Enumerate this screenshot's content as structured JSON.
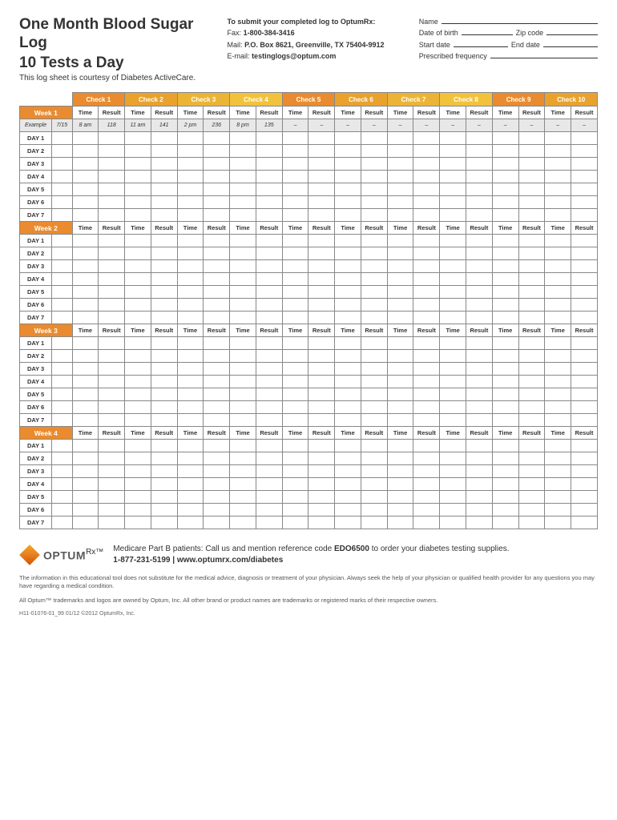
{
  "title1": "One Month Blood Sugar Log",
  "title2": "10 Tests a Day",
  "subtitle": "This log sheet is courtesy of Diabetes ActiveCare.",
  "submit": {
    "heading": "To submit your completed log to OptumRx:",
    "fax_lbl": "Fax:",
    "fax_val": "1-800-384-3416",
    "mail_lbl": "Mail:",
    "mail_val": "P.O. Box 8621, Greenville, TX 75404-9912",
    "email_lbl": "E-mail:",
    "email_val": "testinglogs@optum.com"
  },
  "fields": {
    "name": "Name",
    "dob": "Date of birth",
    "zip": "Zip code",
    "start": "Start date",
    "end": "End date",
    "freq": "Prescribed frequency"
  },
  "table": {
    "checks": [
      "Check 1",
      "Check 2",
      "Check 3",
      "Check 4",
      "Check 5",
      "Check 6",
      "Check 7",
      "Check 8",
      "Check 9",
      "Check 10"
    ],
    "check_colors": [
      "#e98b2e",
      "#e9a22e",
      "#ecb436",
      "#f2c23c",
      "#e98b2e",
      "#e9a22e",
      "#ecb436",
      "#f2c23c",
      "#e98b2e",
      "#e9a22e"
    ],
    "week_color": "#e98b2e",
    "tr_time": "Time",
    "tr_result": "Result",
    "weeks": [
      "Week 1",
      "Week 2",
      "Week 3",
      "Week 4"
    ],
    "days": [
      "DAY 1",
      "DAY 2",
      "DAY 3",
      "DAY 4",
      "DAY 5",
      "DAY 6",
      "DAY 7"
    ],
    "example_label": "Example",
    "example_date": "7/15",
    "example_cells": [
      "8 am",
      "118",
      "11 am",
      "141",
      "2 pm",
      "236",
      "8 pm",
      "135",
      "–",
      "–",
      "–",
      "–",
      "–",
      "–",
      "–",
      "–",
      "–",
      "–",
      "–",
      "–"
    ]
  },
  "footer": {
    "logo_text": "OPTUM",
    "logo_rx": "Rx™",
    "line1a": "Medicare Part B patients:  Call us and mention reference code ",
    "line1b": "EDO6500",
    "line1c": " to order your diabetes testing supplies.",
    "line2": "1-877-231-5199  |  www.optumrx.com/diabetes",
    "disc1": "The information in this educational tool does not substitute for the medical advice, diagnosis or treatment of your physician. Always seek the help of your physician or qualified health provider for any questions you may have regarding a medical condition.",
    "disc2": "All Optum™ trademarks and logos are owned by Optum, Inc. All other brand or product names are trademarks or registered marks of their respective owners.",
    "docid": "H11-01076-01_99 01/12 ©2012 OptumRx, Inc."
  }
}
